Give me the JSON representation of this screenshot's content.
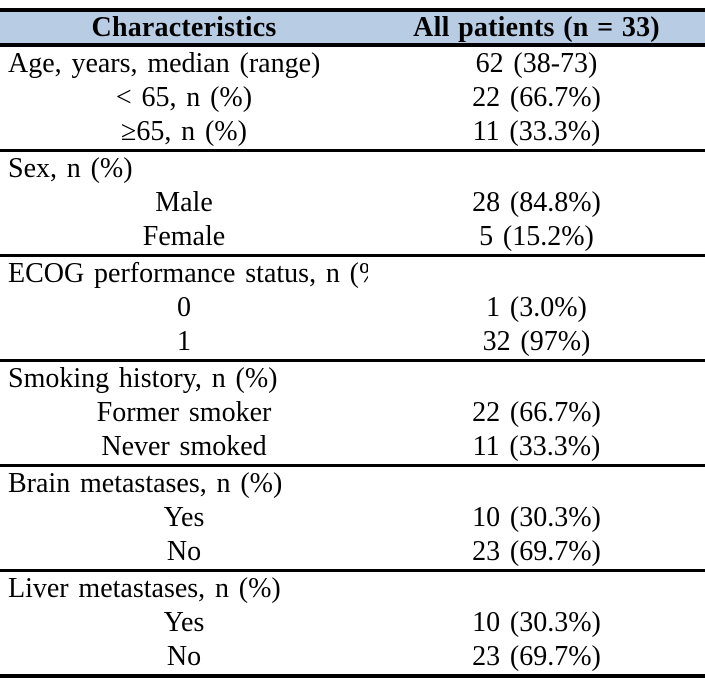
{
  "table": {
    "columns": [
      "Characteristics",
      "All patients (n = 33)"
    ],
    "colors": {
      "header_bg": "#b8cce4",
      "border": "#000000",
      "text": "#000000"
    },
    "rows": [
      {
        "label": "Age, years, median (range)",
        "value": "62 (38-73)",
        "type": "section",
        "divider": false
      },
      {
        "label": "< 65, n (%)",
        "value": "22 (66.7%)",
        "type": "sub",
        "divider": false
      },
      {
        "label": "≥65, n (%)",
        "value": "11 (33.3%)",
        "type": "sub",
        "divider": true
      },
      {
        "label": "Sex, n (%)",
        "value": "",
        "type": "section",
        "divider": false
      },
      {
        "label": "Male",
        "value": "28 (84.8%)",
        "type": "sub",
        "divider": false
      },
      {
        "label": "Female",
        "value": "5 (15.2%)",
        "type": "sub",
        "divider": true
      },
      {
        "label": "ECOG performance status, n (%)",
        "value": "",
        "type": "section",
        "divider": false
      },
      {
        "label": "0",
        "value": "1 (3.0%)",
        "type": "sub",
        "divider": false
      },
      {
        "label": "1",
        "value": "32 (97%)",
        "type": "sub",
        "divider": true
      },
      {
        "label": "Smoking history, n (%)",
        "value": "",
        "type": "section",
        "divider": false
      },
      {
        "label": "Former smoker",
        "value": "22 (66.7%)",
        "type": "sub",
        "divider": false
      },
      {
        "label": "Never smoked",
        "value": "11 (33.3%)",
        "type": "sub",
        "divider": true
      },
      {
        "label": "Brain metastases, n (%)",
        "value": "",
        "type": "section",
        "divider": false
      },
      {
        "label": "Yes",
        "value": "10 (30.3%)",
        "type": "sub",
        "divider": false
      },
      {
        "label": "No",
        "value": "23 (69.7%)",
        "type": "sub",
        "divider": true
      },
      {
        "label": "Liver metastases, n (%)",
        "value": "",
        "type": "section",
        "divider": false
      },
      {
        "label": "Yes",
        "value": "10 (30.3%)",
        "type": "sub",
        "divider": false
      },
      {
        "label": "No",
        "value": "23 (69.7%)",
        "type": "sub",
        "divider": false
      }
    ]
  }
}
